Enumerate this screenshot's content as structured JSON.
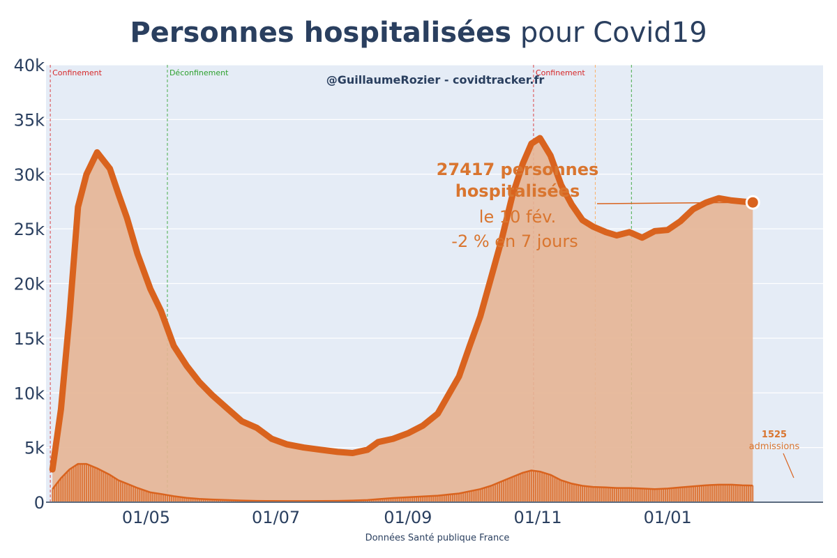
{
  "chart_data": {
    "type": "area",
    "title_bold": "Personnes hospitalisées",
    "title_rest": " pour Covid19",
    "watermark": "@GuillaumeRozier - covidtracker.fr",
    "source": "Données Santé publique France",
    "y_tick_labels": [
      "0",
      "5k",
      "10k",
      "15k",
      "20k",
      "25k",
      "30k",
      "35k",
      "40k"
    ],
    "y_ticks": [
      0,
      5000,
      10000,
      15000,
      20000,
      25000,
      30000,
      35000,
      40000
    ],
    "ylim": [
      0,
      40000
    ],
    "x_axis_type": "date",
    "xlim": [
      "2020-03-15",
      "2021-03-15"
    ],
    "x_tick_labels": [
      "01/05",
      "01/07",
      "01/09",
      "01/11",
      "01/01"
    ],
    "x_ticks": [
      "2020-05-01",
      "2020-07-01",
      "2020-09-01",
      "2020-11-01",
      "2021-01-01"
    ],
    "grid": true,
    "colors": {
      "line": "#d9631e",
      "area": "#e6b595",
      "plot_bg": "#e5ecf6",
      "text": "#2a3f5f",
      "annotation": "#d9752f",
      "confinement": "#d62728",
      "deconfinement": "#2ca02c",
      "other_event": "#ffa64d"
    },
    "events": [
      {
        "date": "2020-03-17",
        "label": "Confinement",
        "color": "#d62728"
      },
      {
        "date": "2020-05-11",
        "label": "Déconfinement",
        "color": "#2ca02c"
      },
      {
        "date": "2020-10-30",
        "label": "Confinement",
        "color": "#d62728"
      },
      {
        "date": "2020-11-28",
        "label": "",
        "color": "#ffa64d"
      },
      {
        "date": "2020-12-15",
        "label": "",
        "color": "#2ca02c"
      }
    ],
    "series": [
      {
        "name": "Personnes hospitalisées",
        "style": "area-line",
        "points": [
          [
            "2020-03-18",
            3000
          ],
          [
            "2020-03-22",
            8500
          ],
          [
            "2020-03-26",
            17000
          ],
          [
            "2020-03-30",
            27000
          ],
          [
            "2020-04-03",
            30000
          ],
          [
            "2020-04-08",
            32000
          ],
          [
            "2020-04-14",
            30500
          ],
          [
            "2020-04-18",
            28200
          ],
          [
            "2020-04-22",
            26000
          ],
          [
            "2020-04-27",
            22700
          ],
          [
            "2020-05-03",
            19500
          ],
          [
            "2020-05-08",
            17500
          ],
          [
            "2020-05-14",
            14300
          ],
          [
            "2020-05-20",
            12500
          ],
          [
            "2020-05-26",
            11000
          ],
          [
            "2020-06-01",
            9800
          ],
          [
            "2020-06-08",
            8600
          ],
          [
            "2020-06-15",
            7400
          ],
          [
            "2020-06-22",
            6800
          ],
          [
            "2020-06-29",
            5800
          ],
          [
            "2020-07-06",
            5300
          ],
          [
            "2020-07-14",
            5000
          ],
          [
            "2020-07-22",
            4800
          ],
          [
            "2020-07-30",
            4600
          ],
          [
            "2020-08-06",
            4500
          ],
          [
            "2020-08-13",
            4800
          ],
          [
            "2020-08-18",
            5500
          ],
          [
            "2020-08-25",
            5800
          ],
          [
            "2020-09-01",
            6300
          ],
          [
            "2020-09-08",
            7000
          ],
          [
            "2020-09-15",
            8100
          ],
          [
            "2020-09-20",
            9800
          ],
          [
            "2020-09-25",
            11500
          ],
          [
            "2020-09-30",
            14300
          ],
          [
            "2020-10-05",
            17000
          ],
          [
            "2020-10-10",
            20500
          ],
          [
            "2020-10-15",
            24000
          ],
          [
            "2020-10-20",
            28000
          ],
          [
            "2020-10-25",
            31000
          ],
          [
            "2020-10-29",
            32800
          ],
          [
            "2020-11-02",
            33300
          ],
          [
            "2020-11-07",
            31700
          ],
          [
            "2020-11-12",
            29000
          ],
          [
            "2020-11-17",
            27200
          ],
          [
            "2020-11-22",
            25800
          ],
          [
            "2020-11-27",
            25200
          ],
          [
            "2020-12-03",
            24700
          ],
          [
            "2020-12-08",
            24400
          ],
          [
            "2020-12-14",
            24700
          ],
          [
            "2020-12-20",
            24200
          ],
          [
            "2020-12-26",
            24800
          ],
          [
            "2021-01-01",
            24900
          ],
          [
            "2021-01-07",
            25700
          ],
          [
            "2021-01-13",
            26800
          ],
          [
            "2021-01-19",
            27400
          ],
          [
            "2021-01-25",
            27800
          ],
          [
            "2021-01-31",
            27600
          ],
          [
            "2021-02-05",
            27500
          ],
          [
            "2021-02-10",
            27417
          ]
        ]
      },
      {
        "name": "admissions",
        "style": "bars-with-smoothed-line",
        "points": [
          [
            "2020-03-18",
            1200
          ],
          [
            "2020-03-22",
            2200
          ],
          [
            "2020-03-26",
            3000
          ],
          [
            "2020-03-30",
            3500
          ],
          [
            "2020-04-03",
            3500
          ],
          [
            "2020-04-08",
            3100
          ],
          [
            "2020-04-14",
            2500
          ],
          [
            "2020-04-18",
            2000
          ],
          [
            "2020-04-22",
            1700
          ],
          [
            "2020-04-27",
            1300
          ],
          [
            "2020-05-03",
            900
          ],
          [
            "2020-05-08",
            750
          ],
          [
            "2020-05-14",
            550
          ],
          [
            "2020-05-20",
            400
          ],
          [
            "2020-05-26",
            300
          ],
          [
            "2020-06-01",
            250
          ],
          [
            "2020-06-08",
            200
          ],
          [
            "2020-06-15",
            150
          ],
          [
            "2020-06-22",
            120
          ],
          [
            "2020-06-29",
            110
          ],
          [
            "2020-07-06",
            100
          ],
          [
            "2020-07-14",
            100
          ],
          [
            "2020-07-22",
            110
          ],
          [
            "2020-07-30",
            120
          ],
          [
            "2020-08-06",
            150
          ],
          [
            "2020-08-13",
            200
          ],
          [
            "2020-08-18",
            280
          ],
          [
            "2020-08-25",
            380
          ],
          [
            "2020-09-01",
            450
          ],
          [
            "2020-09-08",
            520
          ],
          [
            "2020-09-15",
            600
          ],
          [
            "2020-09-20",
            700
          ],
          [
            "2020-09-25",
            800
          ],
          [
            "2020-09-30",
            1000
          ],
          [
            "2020-10-05",
            1200
          ],
          [
            "2020-10-10",
            1500
          ],
          [
            "2020-10-15",
            1900
          ],
          [
            "2020-10-20",
            2300
          ],
          [
            "2020-10-25",
            2700
          ],
          [
            "2020-10-29",
            2900
          ],
          [
            "2020-11-02",
            2800
          ],
          [
            "2020-11-07",
            2500
          ],
          [
            "2020-11-12",
            2000
          ],
          [
            "2020-11-17",
            1700
          ],
          [
            "2020-11-22",
            1500
          ],
          [
            "2020-11-27",
            1400
          ],
          [
            "2020-12-03",
            1350
          ],
          [
            "2020-12-08",
            1300
          ],
          [
            "2020-12-14",
            1300
          ],
          [
            "2020-12-20",
            1250
          ],
          [
            "2020-12-26",
            1200
          ],
          [
            "2021-01-01",
            1250
          ],
          [
            "2021-01-07",
            1350
          ],
          [
            "2021-01-13",
            1450
          ],
          [
            "2021-01-19",
            1550
          ],
          [
            "2021-01-25",
            1600
          ],
          [
            "2021-01-31",
            1600
          ],
          [
            "2021-02-05",
            1550
          ],
          [
            "2021-02-10",
            1525
          ]
        ]
      }
    ],
    "annotations": {
      "main_value": "27417 personnes",
      "main_value_line2": "hospitalisées",
      "main_date": "le 10 fév.",
      "main_change": "-2 % en 7 jours",
      "admissions_value": "1525",
      "admissions_label": "admissions"
    }
  }
}
